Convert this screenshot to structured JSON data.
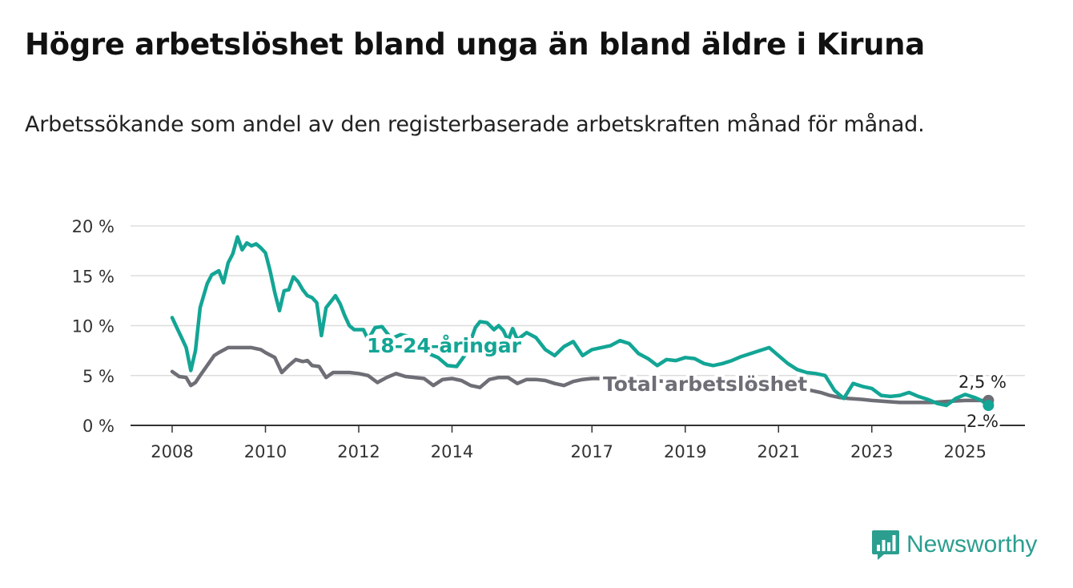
{
  "title": "Högre arbetslöshet bland unga än bland äldre i Kiruna",
  "subtitle": "Arbetssökande som andel av den registerbaserade arbetskraften månad för månad.",
  "brand": {
    "name": "Newsworthy",
    "icon": "newsworthy-logo-icon"
  },
  "colors": {
    "youth": "#13a595",
    "total": "#6e6e76",
    "grid": "#dddddd",
    "axis": "#333333",
    "brand": "#2b9e8f"
  },
  "chart_data": {
    "type": "line",
    "title": "Högre arbetslöshet bland unga än bland äldre i Kiruna",
    "xlabel": "",
    "ylabel": "",
    "xlim": [
      2008,
      2025.55
    ],
    "ylim": [
      0,
      20
    ],
    "y_ticks": [
      0,
      5,
      10,
      15,
      20
    ],
    "y_tick_labels": [
      "0 %",
      "5 %",
      "10 %",
      "15 %",
      "20 %"
    ],
    "x_tick_values": [
      2008,
      2010,
      2012,
      2014,
      2017,
      2019,
      2021,
      2023,
      2025
    ],
    "x_tick_labels": [
      "2008",
      "2010",
      "2012",
      "2014",
      "2017",
      "2019",
      "2021",
      "2023",
      "2025"
    ],
    "grid": "horizontal",
    "series": [
      {
        "name": "18-24-åringar",
        "color": "#13a595",
        "end_label": "2 %",
        "x": [
          2008.0,
          2008.1,
          2008.2,
          2008.3,
          2008.4,
          2008.5,
          2008.6,
          2008.75,
          2008.85,
          2009.0,
          2009.1,
          2009.2,
          2009.3,
          2009.4,
          2009.5,
          2009.6,
          2009.7,
          2009.8,
          2009.9,
          2010.0,
          2010.1,
          2010.2,
          2010.3,
          2010.4,
          2010.5,
          2010.6,
          2010.7,
          2010.8,
          2010.9,
          2011.0,
          2011.1,
          2011.2,
          2011.3,
          2011.4,
          2011.5,
          2011.6,
          2011.7,
          2011.8,
          2011.9,
          2012.0,
          2012.1,
          2012.2,
          2012.35,
          2012.5,
          2012.7,
          2012.9,
          2013.1,
          2013.3,
          2013.5,
          2013.7,
          2013.9,
          2014.1,
          2014.3,
          2014.5,
          2014.6,
          2014.75,
          2014.9,
          2015.0,
          2015.1,
          2015.2,
          2015.3,
          2015.4,
          2015.6,
          2015.8,
          2016.0,
          2016.2,
          2016.4,
          2016.6,
          2016.8,
          2017.0,
          2017.2,
          2017.4,
          2017.6,
          2017.8,
          2018.0,
          2018.2,
          2018.4,
          2018.6,
          2018.8,
          2019.0,
          2019.2,
          2019.4,
          2019.6,
          2019.8,
          2020.0,
          2020.2,
          2020.4,
          2020.6,
          2020.8,
          2021.0,
          2021.2,
          2021.4,
          2021.6,
          2021.8,
          2022.0,
          2022.2,
          2022.4,
          2022.6,
          2022.8,
          2023.0,
          2023.2,
          2023.4,
          2023.6,
          2023.8,
          2024.0,
          2024.2,
          2024.4,
          2024.6,
          2024.8,
          2025.0,
          2025.2,
          2025.35,
          2025.5
        ],
        "y": [
          10.8,
          9.8,
          8.8,
          7.8,
          5.5,
          7.5,
          11.8,
          14.2,
          15.1,
          15.5,
          14.3,
          16.3,
          17.2,
          18.9,
          17.6,
          18.3,
          18.0,
          18.2,
          17.8,
          17.3,
          15.5,
          13.3,
          11.5,
          13.5,
          13.6,
          14.9,
          14.4,
          13.6,
          13.0,
          12.8,
          12.3,
          9.0,
          11.8,
          12.4,
          13.0,
          12.2,
          11.0,
          10.0,
          9.6,
          9.6,
          9.6,
          8.6,
          9.8,
          9.9,
          8.7,
          9.1,
          8.9,
          8.0,
          7.2,
          6.8,
          6.0,
          5.9,
          7.2,
          9.8,
          10.4,
          10.3,
          9.6,
          10.0,
          9.5,
          8.5,
          9.7,
          8.6,
          9.3,
          8.8,
          7.6,
          7.0,
          7.9,
          8.4,
          7.0,
          7.6,
          7.8,
          8.0,
          8.5,
          8.2,
          7.2,
          6.7,
          6.0,
          6.6,
          6.5,
          6.8,
          6.7,
          6.2,
          6.0,
          6.2,
          6.5,
          6.9,
          7.2,
          7.5,
          7.8,
          7.0,
          6.2,
          5.6,
          5.3,
          5.2,
          5.0,
          3.5,
          2.7,
          4.2,
          3.9,
          3.7,
          3.0,
          2.9,
          3.0,
          3.3,
          2.9,
          2.6,
          2.2,
          2.0,
          2.7,
          3.1,
          2.8,
          2.5,
          2.0
        ]
      },
      {
        "name": "Total arbetslöshet",
        "color": "#6e6e76",
        "end_label": "2,5 %",
        "x": [
          2008.0,
          2008.15,
          2008.3,
          2008.4,
          2008.5,
          2008.6,
          2008.75,
          2008.9,
          2009.0,
          2009.2,
          2009.35,
          2009.5,
          2009.7,
          2009.9,
          2010.0,
          2010.2,
          2010.35,
          2010.5,
          2010.65,
          2010.8,
          2010.9,
          2011.0,
          2011.15,
          2011.3,
          2011.45,
          2011.6,
          2011.8,
          2012.0,
          2012.2,
          2012.4,
          2012.6,
          2012.8,
          2013.0,
          2013.2,
          2013.4,
          2013.6,
          2013.8,
          2014.0,
          2014.2,
          2014.4,
          2014.6,
          2014.8,
          2015.0,
          2015.2,
          2015.4,
          2015.6,
          2015.8,
          2016.0,
          2016.2,
          2016.4,
          2016.6,
          2016.8,
          2017.0,
          2017.2,
          2017.4,
          2017.6,
          2017.8,
          2018.0,
          2018.3,
          2018.6,
          2019.0,
          2019.5,
          2020.0,
          2020.5,
          2021.0,
          2021.5,
          2021.9,
          2022.1,
          2022.3,
          2022.5,
          2022.8,
          2023.0,
          2023.3,
          2023.6,
          2024.0,
          2024.3,
          2024.6,
          2025.0,
          2025.3,
          2025.5
        ],
        "y": [
          5.4,
          4.9,
          4.8,
          4.0,
          4.3,
          5.0,
          6.0,
          7.0,
          7.3,
          7.8,
          7.8,
          7.8,
          7.8,
          7.6,
          7.3,
          6.8,
          5.3,
          6.0,
          6.6,
          6.4,
          6.5,
          6.0,
          5.9,
          4.8,
          5.3,
          5.3,
          5.3,
          5.2,
          5.0,
          4.3,
          4.8,
          5.2,
          4.9,
          4.8,
          4.7,
          4.0,
          4.6,
          4.7,
          4.5,
          4.0,
          3.8,
          4.6,
          4.8,
          4.8,
          4.2,
          4.6,
          4.6,
          4.5,
          4.2,
          4.0,
          4.4,
          4.6,
          4.7,
          4.7,
          4.7,
          4.6,
          4.5,
          4.6,
          4.5,
          4.4,
          4.3,
          4.3,
          4.2,
          4.0,
          3.9,
          3.7,
          3.3,
          3.0,
          2.8,
          2.7,
          2.6,
          2.5,
          2.4,
          2.3,
          2.3,
          2.3,
          2.4,
          2.5,
          2.5,
          2.5
        ]
      }
    ]
  }
}
